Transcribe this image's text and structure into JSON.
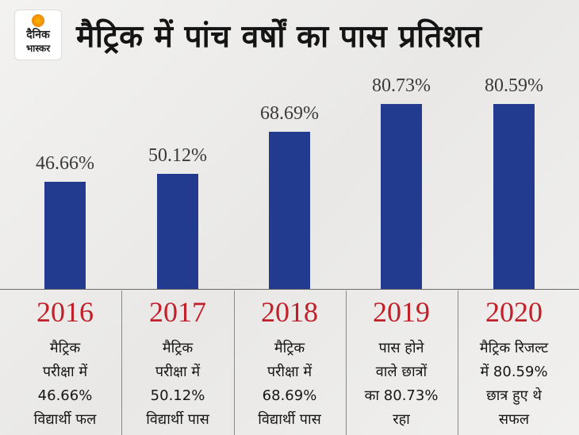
{
  "logo": {
    "line1": "दैनिक",
    "line2": "भास्कर"
  },
  "title": "मैट्रिक में पांच वर्षों का पास प्रतिशत",
  "colors": {
    "bar": "#223b8f",
    "year": "#c0202a",
    "brand_orange": "#f39200"
  },
  "chart_data": {
    "type": "bar",
    "title": "मैट्रिक में पांच वर्षों का पास प्रतिशत",
    "categories": [
      "2016",
      "2017",
      "2018",
      "2019",
      "2020"
    ],
    "values": [
      46.66,
      50.12,
      68.69,
      80.73,
      80.59
    ],
    "value_labels": [
      "46.66%",
      "50.12%",
      "68.69%",
      "80.73%",
      "80.59%"
    ],
    "grid": false,
    "ylim": [
      0,
      100
    ]
  },
  "descriptions": [
    [
      "मैट्रिक",
      "परीक्षा में",
      "46.66%",
      "विद्यार्थी फल"
    ],
    [
      "मैट्रिक",
      "परीक्षा में",
      "50.12%",
      "विद्यार्थी पास"
    ],
    [
      "मैट्रिक",
      "परीक्षा में",
      "68.69%",
      "विद्यार्थी पास"
    ],
    [
      "पास होने",
      "वाले छात्रों",
      "का 80.73%",
      "रहा"
    ],
    [
      "मैट्रिक रिजल्ट",
      "में 80.59%",
      "छात्र हुए थे",
      "सफल"
    ]
  ]
}
